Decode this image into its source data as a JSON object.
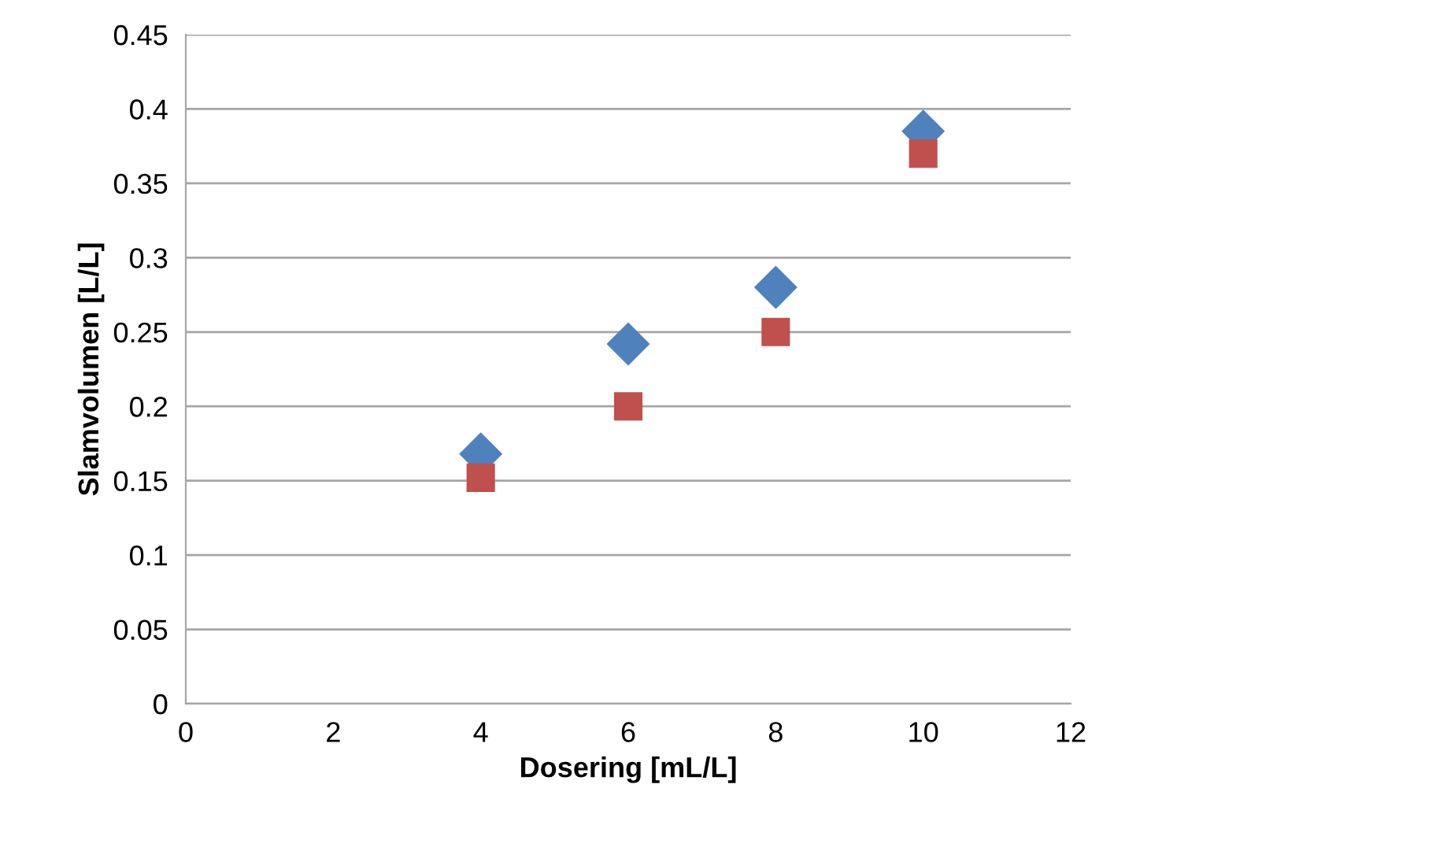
{
  "chart_data": {
    "type": "scatter",
    "xlabel": "Dosering [mL/L]",
    "ylabel": "Slamvolumen [L/L]",
    "xlim": [
      0,
      12
    ],
    "xticks": [
      0,
      2,
      4,
      6,
      8,
      10,
      12
    ],
    "ylim": [
      0,
      0.45
    ],
    "yticks": [
      0,
      0.05,
      0.1,
      0.15,
      0.2,
      0.25,
      0.3,
      0.35,
      0.4,
      0.45
    ],
    "grid": "y",
    "series": [
      {
        "color": "#4f81bd",
        "marker": "diamond",
        "x": [
          4,
          6,
          8,
          10
        ],
        "values": [
          0.168,
          0.242,
          0.28,
          0.385
        ]
      },
      {
        "color": "#c0504d",
        "marker": "square",
        "x": [
          4,
          6,
          8,
          10
        ],
        "values": [
          0.152,
          0.2,
          0.25,
          0.37
        ]
      }
    ]
  }
}
